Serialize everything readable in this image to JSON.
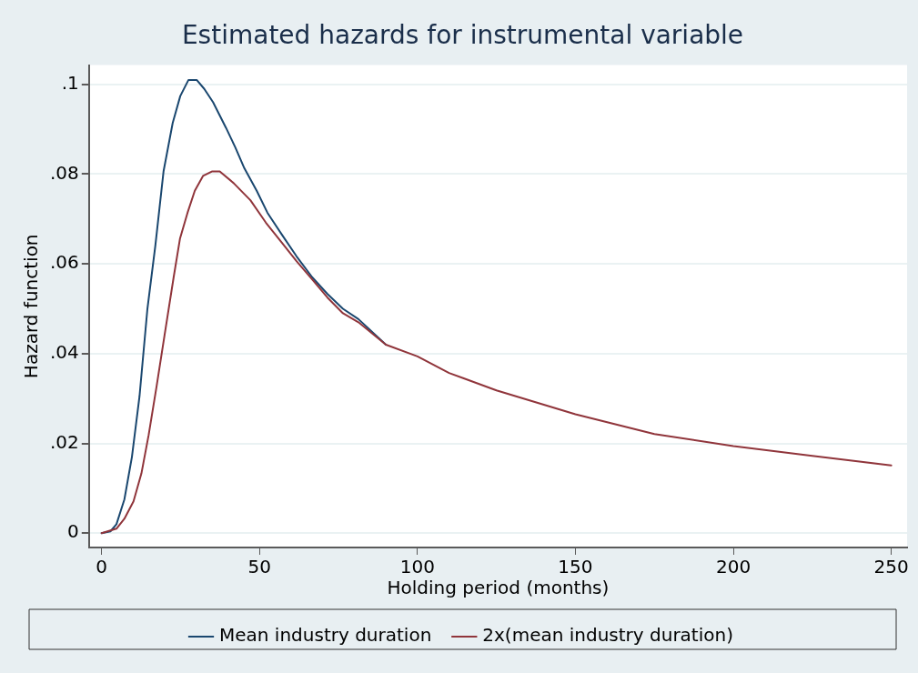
{
  "chart_data": {
    "type": "line",
    "title": "Estimated hazards for instrumental variable",
    "xlabel": "Holding period (months)",
    "ylabel": "Hazard function",
    "xlim": [
      -4,
      255
    ],
    "xticks": [
      0,
      50,
      100,
      150,
      200,
      250
    ],
    "ylim": [
      -0.0032,
      0.1043
    ],
    "yticks": [
      {
        "value": 0,
        "label": "0"
      },
      {
        "value": 0.02,
        "label": ".02"
      },
      {
        "value": 0.04,
        "label": ".04"
      },
      {
        "value": 0.06,
        "label": ".06"
      },
      {
        "value": 0.08,
        "label": ".08"
      },
      {
        "value": 0.1,
        "label": ".1"
      }
    ],
    "grid": "y",
    "legend": "bottom",
    "marker": "none",
    "line_style": "solid",
    "series": [
      {
        "name": "Mean industry duration",
        "color": "#1a476f",
        "x": [
          0,
          2.8,
          4.7,
          7.2,
          9.6,
          12,
          14.5,
          17,
          19.6,
          22.5,
          24.9,
          27.5,
          30.1,
          32.5,
          35.3,
          39.4,
          42.3,
          45.2,
          49.1,
          52.5,
          56.9,
          61.7,
          66.7,
          71.5,
          76.4,
          81.3,
          90
        ],
        "values": [
          0,
          0.0004,
          0.002,
          0.0075,
          0.017,
          0.0305,
          0.05,
          0.064,
          0.0806,
          0.0914,
          0.0974,
          0.101,
          0.101,
          0.099,
          0.096,
          0.0903,
          0.086,
          0.0813,
          0.0763,
          0.0714,
          0.0667,
          0.0617,
          0.057,
          0.0533,
          0.05,
          0.0477,
          0.042
        ]
      },
      {
        "name": "2x(mean industry duration)",
        "color": "#90353b",
        "x": [
          0,
          4.7,
          7.2,
          10.1,
          12.6,
          14.9,
          17.4,
          19.9,
          22.8,
          24.8,
          27.2,
          29.5,
          32.1,
          34.9,
          37.4,
          41.8,
          47.1,
          52,
          57.3,
          61.7,
          66.7,
          71.5,
          76.4,
          81.3,
          90,
          100,
          110,
          125,
          150,
          175,
          200,
          225,
          250
        ],
        "values": [
          0,
          0.001,
          0.0032,
          0.0071,
          0.0133,
          0.0219,
          0.0327,
          0.044,
          0.057,
          0.0656,
          0.0714,
          0.0763,
          0.0796,
          0.0806,
          0.0806,
          0.078,
          0.0742,
          0.0692,
          0.0645,
          0.0606,
          0.0565,
          0.0525,
          0.049,
          0.047,
          0.042,
          0.0394,
          0.0357,
          0.0318,
          0.0265,
          0.0221,
          0.0194,
          0.0172,
          0.0151
        ]
      }
    ]
  }
}
